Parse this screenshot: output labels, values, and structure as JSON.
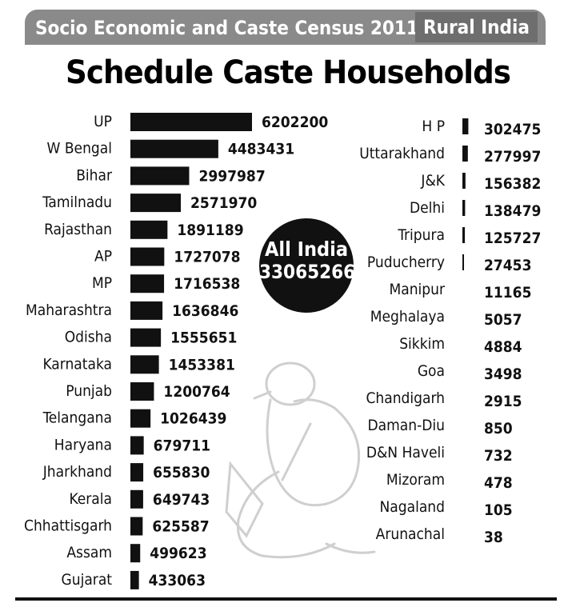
{
  "banner": {
    "title": "Socio Economic and Caste Census 2011",
    "subtitle": "Rural India"
  },
  "headline": "Schedule Caste Households",
  "total": {
    "label": "All India",
    "value": "33065266"
  },
  "chart_data": {
    "type": "bar",
    "title": "Schedule Caste Households",
    "series": [
      {
        "categories": [
          "UP",
          "W Bengal",
          "Bihar",
          "Tamilnadu",
          "Rajasthan",
          "AP",
          "MP",
          "Maharashtra",
          "Odisha",
          "Karnataka",
          "Punjab",
          "Telangana",
          "Haryana",
          "Jharkhand",
          "Kerala",
          "Chhattisgarh",
          "Assam",
          "Gujarat",
          "H P",
          "Uttarakhand",
          "J&K",
          "Delhi",
          "Tripura",
          "Puducherry",
          "Manipur",
          "Meghalaya",
          "Sikkim",
          "Goa",
          "Chandigarh",
          "Daman-Diu",
          "D&N Haveli",
          "Mizoram",
          "Nagaland",
          "Arunachal"
        ],
        "values": [
          6202200,
          4483431,
          2997987,
          2571970,
          1891189,
          1727078,
          1716538,
          1636846,
          1555651,
          1453381,
          1200764,
          1026439,
          679711,
          655830,
          649743,
          625587,
          499623,
          433063,
          302475,
          277997,
          156382,
          138479,
          125727,
          27453,
          11165,
          5057,
          4884,
          3498,
          2915,
          850,
          732,
          478,
          105,
          38
        ]
      }
    ]
  }
}
